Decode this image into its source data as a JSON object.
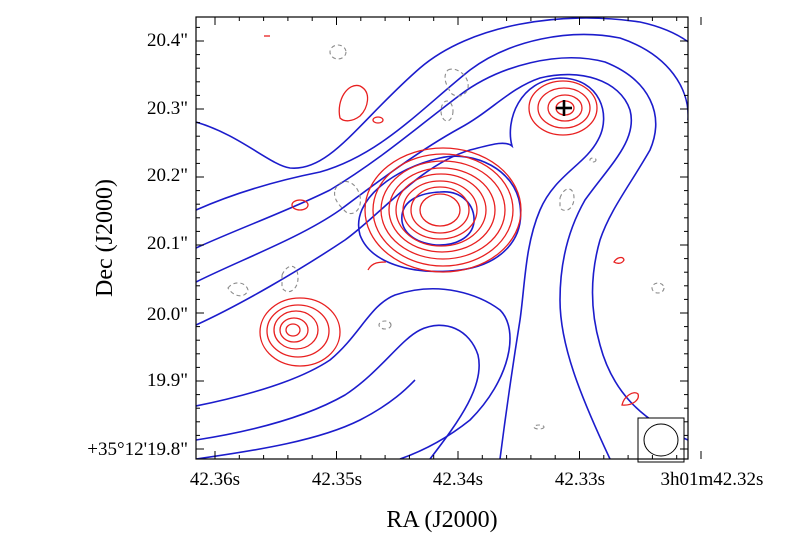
{
  "chart_data": {
    "type": "contour",
    "xlabel": "RA (J2000)",
    "ylabel": "Dec (J2000)",
    "x_ticks": [
      "42.36s",
      "42.35s",
      "42.34s",
      "42.33s",
      "3h01m42.32s"
    ],
    "y_ticks": [
      "+35°12'19.8\"",
      "19.9\"",
      "20.0\"",
      "20.1\"",
      "20.2\"",
      "20.3\"",
      "20.4\""
    ],
    "x_range_seconds": [
      42.36,
      42.32
    ],
    "y_range_arcsec": [
      19.8,
      20.4
    ],
    "grid": false,
    "series": [
      {
        "style": "blue solid contours",
        "color": "#1c1ccc",
        "levels_drawn": 10,
        "peak": {
          "ra": 42.3385,
          "dec": 20.14
        }
      },
      {
        "style": "red solid contours",
        "color": "#e82020",
        "sources": [
          {
            "ra": 42.3385,
            "dec": 20.15
          },
          {
            "ra": 42.3288,
            "dec": 20.3
          },
          {
            "ra": 42.3522,
            "dec": 19.975
          }
        ]
      },
      {
        "style": "grey dashed negative contours",
        "color": "#8c8c8c"
      }
    ],
    "marker": {
      "symbol": "+",
      "ra": 42.3288,
      "dec": 20.3
    },
    "beam_inset": {
      "location": "bottom-right"
    }
  }
}
